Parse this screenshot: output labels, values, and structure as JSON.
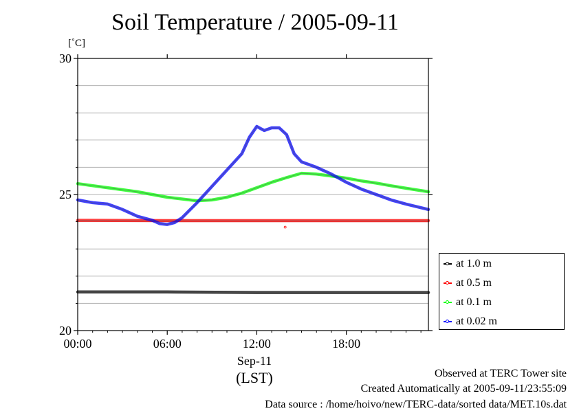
{
  "title": "Soil Temperature / 2005-09-11",
  "unit_label": "[˚C]",
  "x_date_label": "Sep-11",
  "x_zone_label": "(LST)",
  "footer": {
    "line1": "Observed at TERC Tower site",
    "line2": "Created Automatically at 2005-09-11/23:55:09",
    "line3": "Data source : /home/hoivo/new/TERC-data/sorted  data/MET.10s.dat"
  },
  "chart_data": {
    "type": "line",
    "title": "Soil Temperature / 2005-09-11",
    "xlabel": "Sep-11 (LST)",
    "ylabel": "[˚C]",
    "xlim": [
      0,
      23.5
    ],
    "ylim": [
      20,
      30
    ],
    "x_ticks": [
      0,
      6,
      12,
      18
    ],
    "x_tick_labels": [
      "00:00",
      "06:00",
      "12:00",
      "18:00"
    ],
    "y_ticks": [
      20,
      25,
      30
    ],
    "y_tick_labels": [
      "20",
      "25",
      "30"
    ],
    "y_minor_gridlines": [
      21,
      22,
      23,
      24,
      26,
      27,
      28,
      29
    ],
    "legend_position": "lower-right outside",
    "series": [
      {
        "name": "at 1.0 m",
        "color": "#000000",
        "x": [
          0,
          6,
          12,
          18,
          23.5
        ],
        "values": [
          21.42,
          21.42,
          21.4,
          21.4,
          21.4
        ]
      },
      {
        "name": "at 0.5 m",
        "color": "#ff0000",
        "x": [
          0,
          6,
          12,
          18,
          23.5
        ],
        "values": [
          24.05,
          24.04,
          24.04,
          24.04,
          24.04
        ],
        "outlier": {
          "x": 13.9,
          "y": 23.8
        }
      },
      {
        "name": "at 0.1 m",
        "color": "#00ff00",
        "x": [
          0,
          2,
          4,
          6,
          8,
          9,
          10,
          11,
          12,
          13,
          14,
          15,
          16,
          17,
          18,
          19,
          20,
          21,
          22,
          23.5
        ],
        "values": [
          25.4,
          25.25,
          25.1,
          24.9,
          24.77,
          24.8,
          24.9,
          25.05,
          25.25,
          25.45,
          25.62,
          25.78,
          25.75,
          25.68,
          25.6,
          25.5,
          25.42,
          25.32,
          25.23,
          25.1
        ]
      },
      {
        "name": "at 0.02 m",
        "color": "#0000ff",
        "x": [
          0,
          1,
          2,
          3,
          4,
          5,
          5.5,
          6,
          6.5,
          7,
          8,
          9,
          10,
          11,
          11.5,
          12,
          12.5,
          13,
          13.5,
          14,
          14.5,
          15,
          16,
          17,
          18,
          19,
          20,
          21,
          22,
          23.5
        ],
        "values": [
          24.8,
          24.7,
          24.65,
          24.45,
          24.2,
          24.05,
          23.93,
          23.9,
          23.97,
          24.15,
          24.7,
          25.3,
          25.9,
          26.5,
          27.1,
          27.5,
          27.35,
          27.45,
          27.45,
          27.2,
          26.5,
          26.2,
          26.0,
          25.75,
          25.45,
          25.2,
          25.0,
          24.8,
          24.65,
          24.45
        ]
      }
    ]
  }
}
